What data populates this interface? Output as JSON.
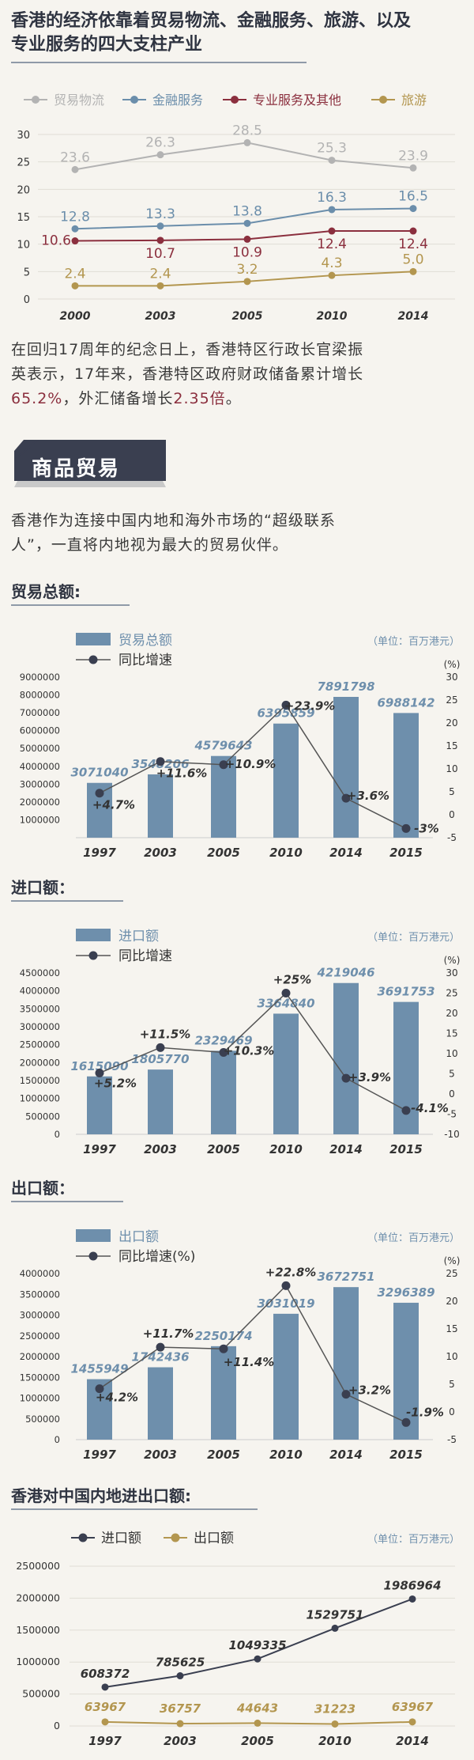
{
  "header": {
    "title_line1": "香港的经济依靠着贸易物流、金融服务、旅游、以及",
    "title_line2": "专业服务的四大支柱产业"
  },
  "colors": {
    "gray": "#b3b3b3",
    "blue": "#6b8eab",
    "red": "#8b2f3e",
    "gold": "#b3964f",
    "dark": "#3a3f50",
    "bar": "#6e8fac"
  },
  "paragraph1": {
    "part1": "在回归17周年的纪念日上，香港特区行政长官梁振",
    "part2": "英表示，17年来，香港特区政府财政储备累计增长",
    "highlight1": "65.2%",
    "part3": "，外汇储备增长",
    "highlight2": "2.35倍",
    "part4": "。"
  },
  "banner": {
    "label": "商品贸易"
  },
  "paragraph2": {
    "line1": "香港作为连接中国内地和海外市场的“超级联系",
    "line2": "人”，一直将内地视为最大的贸易伙伴。"
  },
  "sections": {
    "total": "贸易总额:",
    "imports": "进口额：",
    "exports": "出口额：",
    "mainland": "香港对中国内地进出口额:"
  },
  "chart_data": [
    {
      "id": "industries",
      "type": "line",
      "title": "香港的经济依靠着贸易物流、金融服务、旅游、以及专业服务的四大支柱产业",
      "categories": [
        "2000",
        "2003",
        "2005",
        "2010",
        "2014"
      ],
      "ylim": [
        0,
        30
      ],
      "yticks": [
        0,
        5,
        10,
        15,
        20,
        25,
        30
      ],
      "series": [
        {
          "name": "贸易物流",
          "color": "#b3b3b3",
          "values": [
            23.6,
            26.3,
            28.5,
            25.3,
            23.9
          ],
          "labels": [
            "23.6",
            "26.3",
            "28.5",
            "25.3",
            "23.9"
          ]
        },
        {
          "name": "金融服务",
          "color": "#6b8eab",
          "values": [
            12.8,
            13.3,
            13.8,
            16.3,
            16.5
          ],
          "labels": [
            "12.8",
            "13.3",
            "13.8",
            "16.3",
            "16.5"
          ]
        },
        {
          "name": "专业服务及其他",
          "color": "#8b2f3e",
          "values": [
            10.6,
            10.7,
            10.9,
            12.4,
            12.4
          ],
          "labels": [
            "10.6",
            "10.7",
            "10.9",
            "12.4",
            "12.4"
          ]
        },
        {
          "name": "旅游",
          "color": "#b3964f",
          "values": [
            2.4,
            2.4,
            3.2,
            4.3,
            5.0
          ],
          "labels": [
            "2.4",
            "2.4",
            "3.2",
            "4.3",
            "5.0"
          ]
        }
      ]
    },
    {
      "id": "total",
      "type": "bar+line",
      "unit_note": "（单位：百万港元）",
      "bar_name": "贸易总额",
      "line_name": "同比增速",
      "categories": [
        "1997",
        "2003",
        "2005",
        "2010",
        "2014",
        "2015"
      ],
      "values": [
        3071040,
        3548206,
        4579643,
        6395859,
        7891798,
        6988142
      ],
      "value_labels": [
        "3071040",
        "3548206",
        "4579643",
        "6395859",
        "7891798",
        "6988142"
      ],
      "growth": [
        4.7,
        11.6,
        10.9,
        23.9,
        3.6,
        -3
      ],
      "growth_labels": [
        "+4.7%",
        "+11.6%",
        "+10.9%",
        "+23.9%",
        "+3.6%",
        "-3%"
      ],
      "ylim": [
        0,
        9000000
      ],
      "yticks": [
        1000000,
        2000000,
        3000000,
        4000000,
        5000000,
        6000000,
        7000000,
        8000000,
        9000000
      ],
      "y2lim": [
        -5,
        30
      ],
      "y2ticks": [
        -5,
        0,
        5,
        10,
        15,
        20,
        25,
        30
      ],
      "y2label": "(%)"
    },
    {
      "id": "imports",
      "type": "bar+line",
      "unit_note": "（单位：百万港元）",
      "bar_name": "进口额",
      "line_name": "同比增速",
      "categories": [
        "1997",
        "2003",
        "2005",
        "2010",
        "2014",
        "2015"
      ],
      "values": [
        1615090,
        1805770,
        2329469,
        3364840,
        4219046,
        3691753
      ],
      "value_labels": [
        "1615090",
        "1805770",
        "2329469",
        "3364840",
        "4219046",
        "3691753"
      ],
      "growth": [
        5.2,
        11.5,
        10.3,
        25,
        3.9,
        -4.1
      ],
      "growth_labels": [
        "+5.2%",
        "+11.5%",
        "+10.3%",
        "+25%",
        "+3.9%",
        "-4.1%"
      ],
      "ylim": [
        0,
        4500000
      ],
      "yticks": [
        0,
        500000,
        1000000,
        1500000,
        2000000,
        2500000,
        3000000,
        3500000,
        4000000,
        4500000
      ],
      "y2lim": [
        -10,
        30
      ],
      "y2ticks": [
        -10,
        -5,
        0,
        5,
        10,
        15,
        20,
        25,
        30
      ],
      "y2label": "(%)"
    },
    {
      "id": "exports",
      "type": "bar+line",
      "unit_note": "（单位：百万港元）",
      "bar_name": "出口额",
      "line_name": "同比增速(%)",
      "categories": [
        "1997",
        "2003",
        "2005",
        "2010",
        "2014",
        "2015"
      ],
      "values": [
        1455949,
        1742436,
        2250174,
        3031019,
        3672751,
        3296389
      ],
      "value_labels": [
        "1455949",
        "1742436",
        "2250174",
        "3031019",
        "3672751",
        "3296389"
      ],
      "growth": [
        4.2,
        11.7,
        11.4,
        22.8,
        3.2,
        -1.9
      ],
      "growth_labels": [
        "+4.2%",
        "+11.7%",
        "+11.4%",
        "+22.8%",
        "+3.2%",
        "-1.9%"
      ],
      "ylim": [
        0,
        4000000
      ],
      "yticks": [
        0,
        500000,
        1000000,
        1500000,
        2000000,
        2500000,
        3000000,
        3500000,
        4000000
      ],
      "y2lim": [
        -5,
        25
      ],
      "y2ticks": [
        -5,
        0,
        5,
        10,
        15,
        20,
        25
      ],
      "y2label": "(%)"
    },
    {
      "id": "mainland",
      "type": "line",
      "unit_note": "（单位：百万港元）",
      "categories": [
        "1997",
        "2003",
        "2005",
        "2010",
        "2014"
      ],
      "ylim": [
        0,
        2500000
      ],
      "yticks": [
        0,
        500000,
        1000000,
        1500000,
        2000000,
        2500000
      ],
      "series": [
        {
          "name": "进口额",
          "color": "#3a3f50",
          "values": [
            608372,
            785625,
            1049335,
            1529751,
            1986964
          ],
          "labels": [
            "608372",
            "785625",
            "1049335",
            "1529751",
            "1986964"
          ]
        },
        {
          "name": "出口额",
          "color": "#b3964f",
          "values": [
            63967,
            36757,
            44643,
            31223,
            63967
          ],
          "labels": [
            "63967",
            "36757",
            "44643",
            "31223",
            "63967"
          ]
        }
      ]
    }
  ]
}
